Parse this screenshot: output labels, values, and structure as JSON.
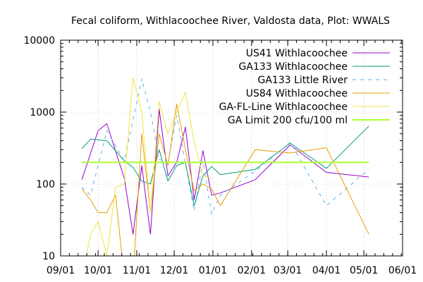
{
  "chart_data": {
    "type": "line",
    "title": "Fecal coliform, Withlacoochee River, Valdosta data, Plot: WWALS",
    "xlabel": "",
    "ylabel": "",
    "y_scale": "log",
    "ylim": [
      10,
      10000
    ],
    "y_ticks": [
      10,
      100,
      1000,
      10000
    ],
    "y_tick_labels": [
      "10",
      "100",
      "1000",
      "10000"
    ],
    "xlim": [
      "2019-09-01",
      "2020-06-01"
    ],
    "x_ticks": [
      "2019-09-01",
      "2019-10-01",
      "2019-11-01",
      "2019-12-01",
      "2020-01-01",
      "2020-02-01",
      "2020-03-01",
      "2020-04-01",
      "2020-05-01",
      "2020-06-01"
    ],
    "x_tick_labels": [
      "09/01",
      "10/01",
      "11/01",
      "12/01",
      "01/01",
      "02/01",
      "03/01",
      "04/01",
      "05/01",
      "06/01"
    ],
    "grid": true,
    "legend_position": "top-right",
    "series": [
      {
        "name": "US41 Withlacoochee",
        "color": "#9400d3",
        "dash": "solid",
        "x": [
          "2019-09-18",
          "2019-10-01",
          "2019-10-08",
          "2019-10-22",
          "2019-10-29",
          "2019-11-05",
          "2019-11-12",
          "2019-11-19",
          "2019-11-26",
          "2019-12-03",
          "2019-12-10",
          "2019-12-17",
          "2019-12-24",
          "2019-12-31",
          "2020-01-07",
          "2020-02-04",
          "2020-03-03",
          "2020-04-01",
          "2020-05-05"
        ],
        "y": [
          115,
          550,
          690,
          120,
          20,
          180,
          20,
          1100,
          130,
          200,
          620,
          60,
          290,
          70,
          75,
          115,
          350,
          145,
          125
        ]
      },
      {
        "name": "GA133 Withlacoochee",
        "color": "#009e73",
        "dash": "solid",
        "x": [
          "2019-09-18",
          "2019-09-25",
          "2019-10-08",
          "2019-10-22",
          "2019-10-29",
          "2019-11-05",
          "2019-11-12",
          "2019-11-19",
          "2019-11-26",
          "2019-12-03",
          "2019-12-10",
          "2019-12-17",
          "2019-12-24",
          "2019-12-31",
          "2020-01-07",
          "2020-02-04",
          "2020-03-03",
          "2020-04-01",
          "2020-05-05"
        ],
        "y": [
          310,
          420,
          400,
          210,
          170,
          110,
          100,
          300,
          110,
          180,
          200,
          50,
          130,
          175,
          135,
          160,
          370,
          165,
          640
        ]
      },
      {
        "name": "GA133 Little River",
        "color": "#56b4e9",
        "dash": "dashed",
        "x": [
          "2019-09-18",
          "2019-09-25",
          "2019-10-08",
          "2019-10-22",
          "2019-10-29",
          "2019-11-05",
          "2019-11-12",
          "2019-11-19",
          "2019-11-26",
          "2019-12-03",
          "2019-12-10",
          "2019-12-17",
          "2019-12-24",
          "2019-12-31",
          "2020-01-07",
          "2020-02-04",
          "2020-03-03",
          "2020-04-01",
          "2020-05-05"
        ],
        "y": [
          90,
          70,
          550,
          210,
          780,
          2900,
          1000,
          220,
          200,
          900,
          190,
          42,
          210,
          38,
          70,
          150,
          380,
          50,
          160
        ]
      },
      {
        "name": "US84 Withlacoochee",
        "color": "#e69f00",
        "dash": "solid",
        "x": [
          "2019-09-18",
          "2019-09-25",
          "2019-10-01",
          "2019-10-08",
          "2019-10-15",
          "2019-10-22",
          "2019-10-29",
          "2019-11-05",
          "2019-11-12",
          "2019-11-19",
          "2019-11-26",
          "2019-12-03",
          "2019-12-10",
          "2019-12-17",
          "2019-12-24",
          "2019-12-31",
          "2020-01-07",
          "2020-02-04",
          "2020-03-03",
          "2020-04-01",
          "2020-05-05"
        ],
        "y": [
          85,
          60,
          40,
          40,
          70,
          5,
          5,
          500,
          40,
          500,
          180,
          1300,
          300,
          80,
          100,
          85,
          50,
          300,
          270,
          320,
          20
        ]
      },
      {
        "name": "GA-FL-Line Withlacoochee",
        "color": "#f0e442",
        "dash": "solid",
        "x": [
          "2019-09-18",
          "2019-09-25",
          "2019-10-01",
          "2019-10-08",
          "2019-10-15",
          "2019-10-22",
          "2019-10-29",
          "2019-11-05",
          "2019-11-12",
          "2019-11-19",
          "2019-11-26",
          "2019-12-03",
          "2019-12-10",
          "2019-12-17",
          "2019-12-24",
          "2019-12-31"
        ],
        "y": [
          5,
          20,
          30,
          10,
          90,
          100,
          3000,
          1000,
          40,
          1400,
          500,
          1000,
          1900,
          380,
          130,
          120
        ]
      },
      {
        "name": "GA Limit 200 cfu/100 ml",
        "color": "#adff2f",
        "dash": "solid",
        "width": 2,
        "x": [
          "2019-09-18",
          "2020-05-05"
        ],
        "y": [
          200,
          200
        ]
      }
    ]
  }
}
